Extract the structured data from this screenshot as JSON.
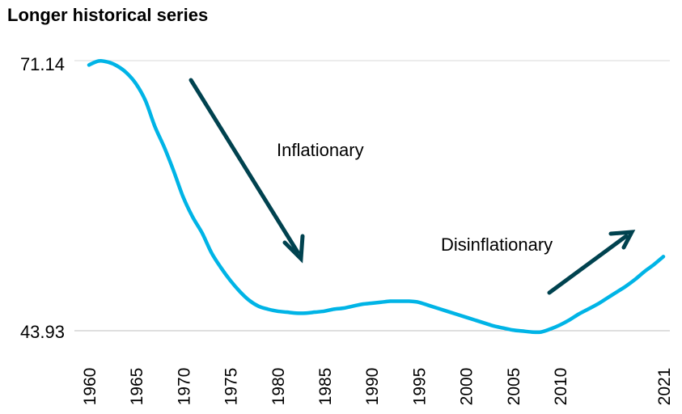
{
  "chart_data": {
    "type": "line",
    "title": "Longer historical series",
    "xlabel": "",
    "ylabel": "",
    "x": [
      1960,
      1961,
      1962,
      1963,
      1964,
      1965,
      1966,
      1967,
      1968,
      1969,
      1970,
      1971,
      1972,
      1973,
      1974,
      1975,
      1976,
      1977,
      1978,
      1979,
      1980,
      1981,
      1982,
      1983,
      1984,
      1985,
      1986,
      1987,
      1988,
      1989,
      1990,
      1991,
      1992,
      1993,
      1994,
      1995,
      1996,
      1997,
      1998,
      1999,
      2000,
      2001,
      2002,
      2003,
      2004,
      2005,
      2006,
      2007,
      2008,
      2009,
      2010,
      2011,
      2012,
      2013,
      2014,
      2015,
      2016,
      2017,
      2018,
      2019,
      2020,
      2021
    ],
    "series": [
      {
        "color": "#00B4E6",
        "values": [
          70.7,
          71.1,
          71.0,
          70.6,
          69.9,
          68.8,
          67.1,
          64.5,
          62.4,
          60.0,
          57.4,
          55.4,
          53.8,
          51.8,
          50.3,
          49.0,
          47.9,
          47.0,
          46.4,
          46.1,
          45.9,
          45.8,
          45.7,
          45.7,
          45.8,
          45.9,
          46.1,
          46.2,
          46.4,
          46.6,
          46.7,
          46.8,
          46.9,
          46.9,
          46.9,
          46.8,
          46.5,
          46.2,
          45.9,
          45.6,
          45.3,
          45.0,
          44.7,
          44.4,
          44.2,
          44.0,
          43.9,
          43.8,
          43.8,
          44.1,
          44.5,
          45.0,
          45.6,
          46.1,
          46.6,
          47.2,
          47.8,
          48.4,
          49.1,
          49.9,
          50.6,
          51.4
        ]
      }
    ],
    "ylim": [
      43.93,
      71.14
    ],
    "y_ticks": [
      "71.14",
      "43.93"
    ],
    "x_ticks": [
      "1960",
      "1965",
      "1970",
      "1975",
      "1980",
      "1985",
      "1990",
      "1995",
      "2000",
      "2005",
      "2010",
      "2021"
    ],
    "x_tick_values": [
      1960,
      1965,
      1970,
      1975,
      1980,
      1985,
      1990,
      1995,
      2000,
      2005,
      2010,
      2021
    ],
    "annotations": [
      {
        "text": "Inflationary",
        "arrow": "down"
      },
      {
        "text": "Disinflationary",
        "arrow": "up"
      }
    ],
    "arrow_color": "#00424F",
    "grid": "horizontal-at-ticks",
    "legend": "none"
  }
}
